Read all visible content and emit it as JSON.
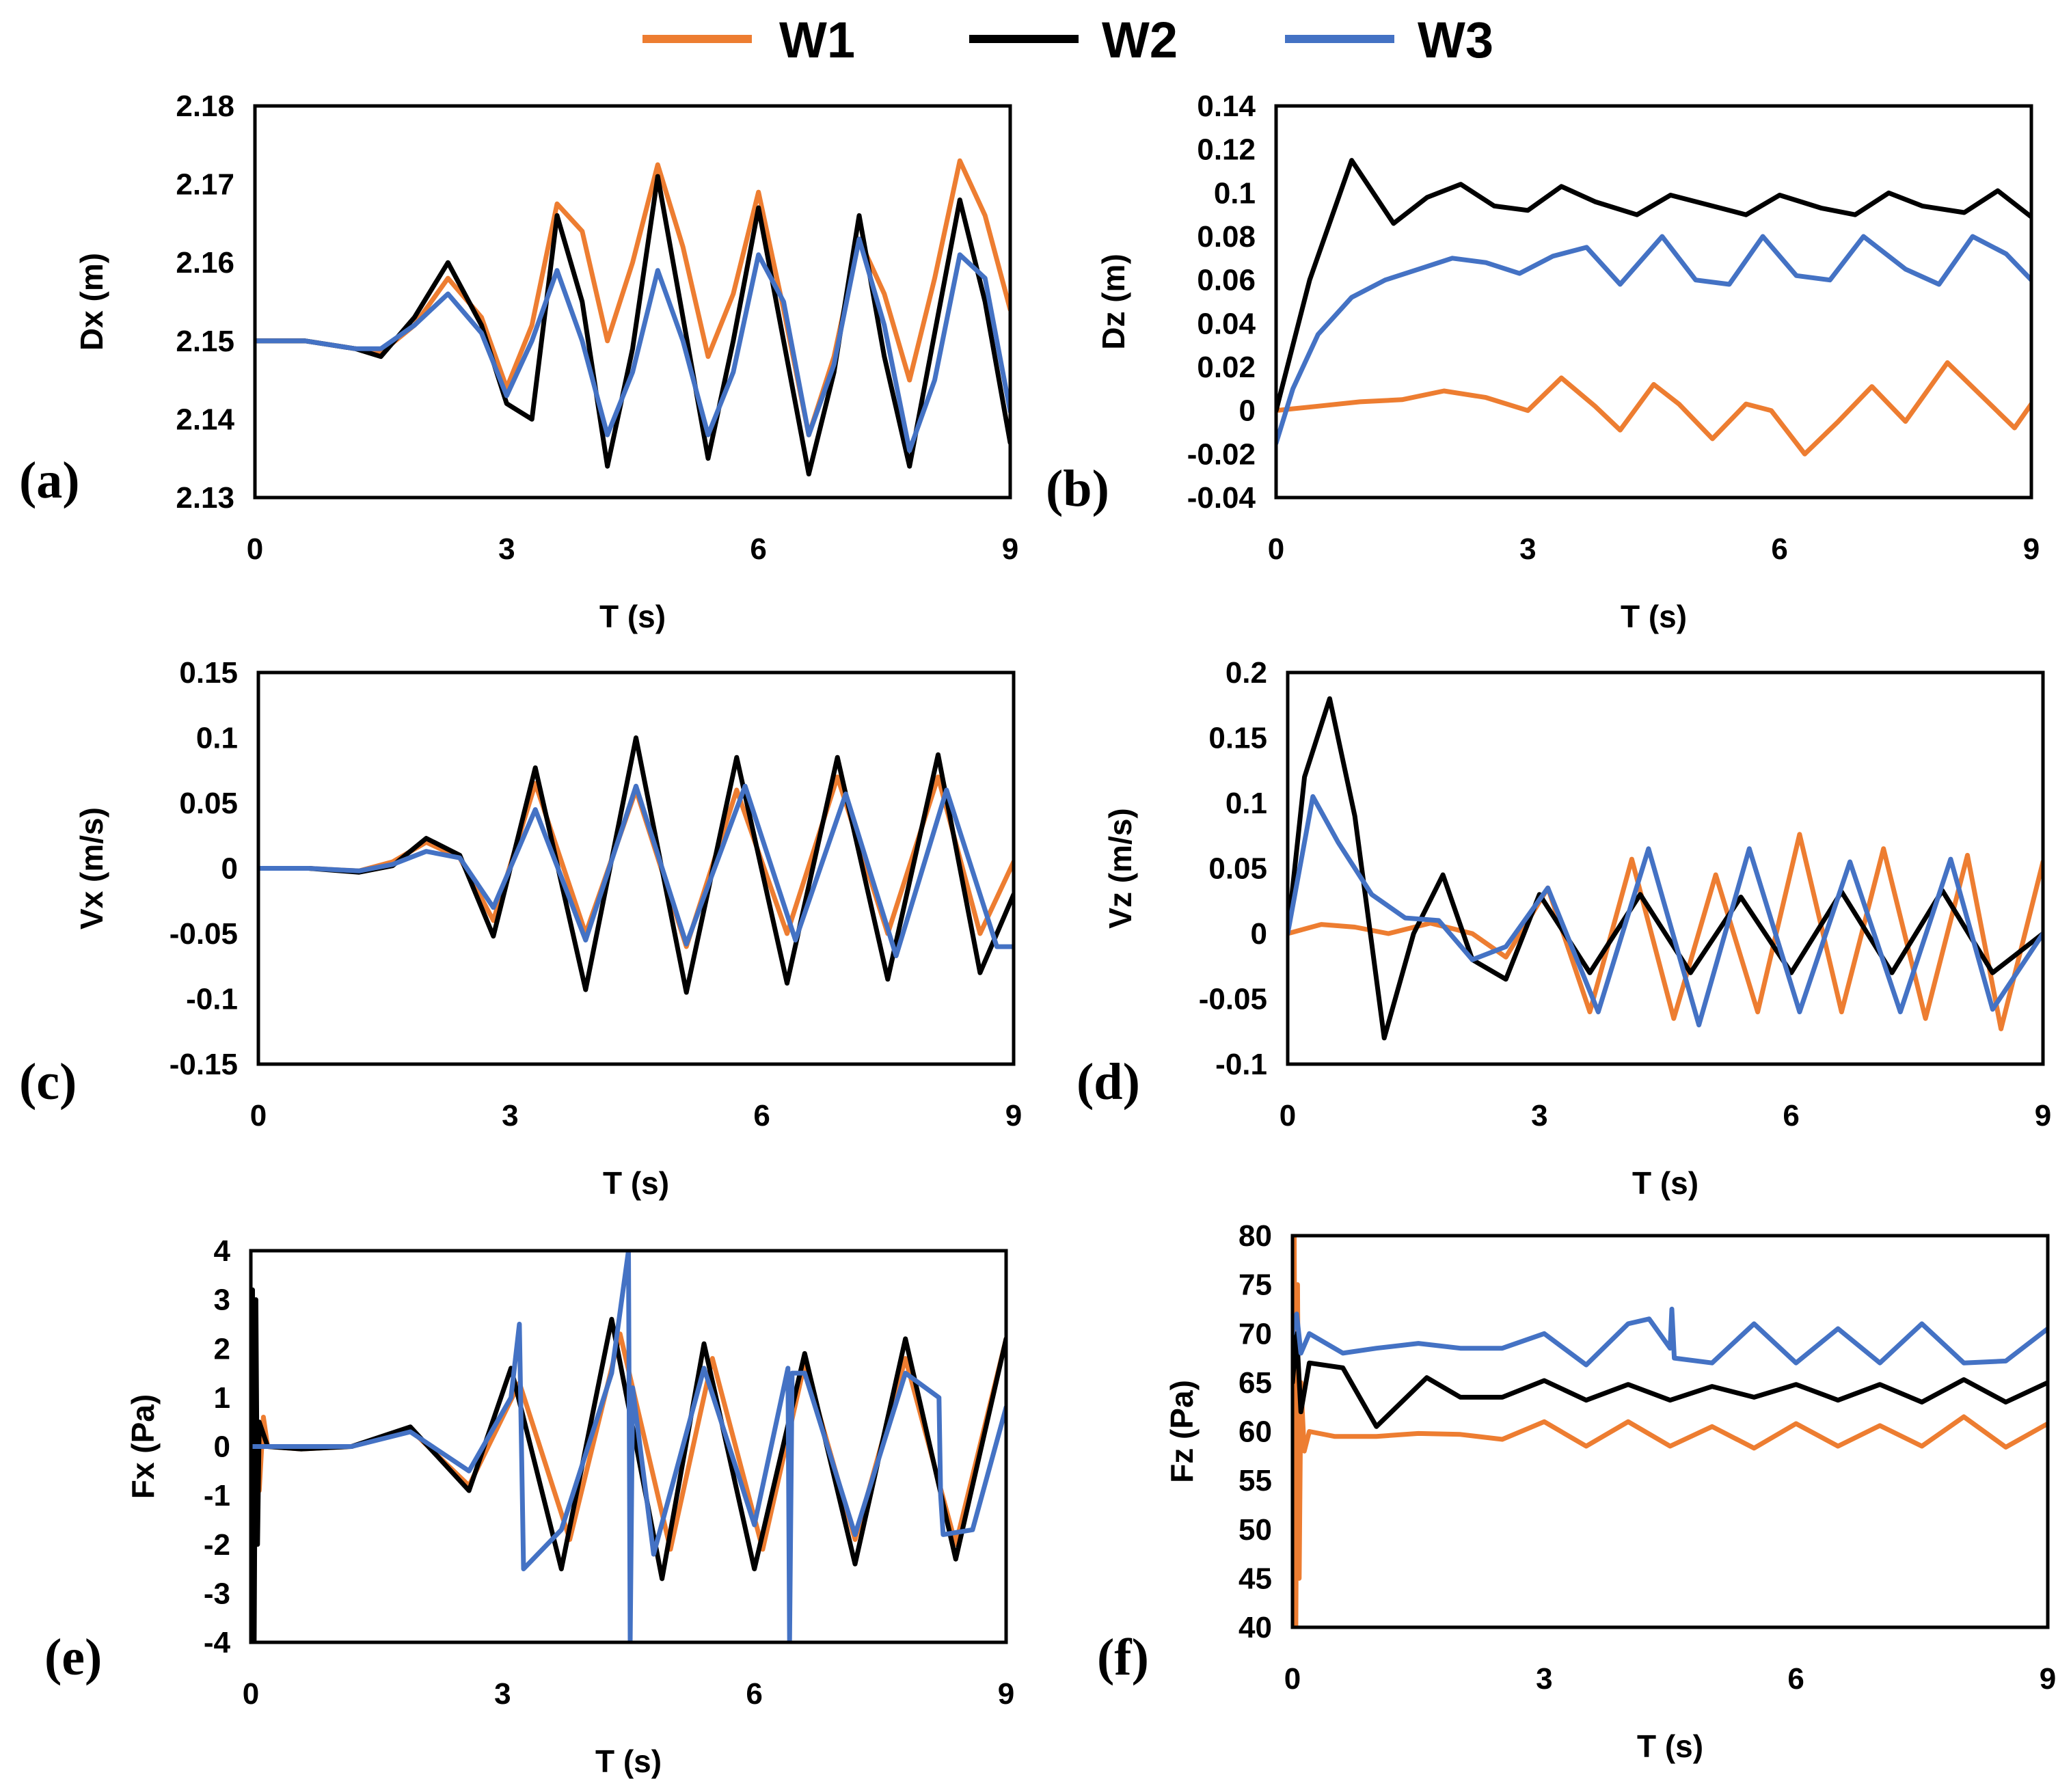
{
  "legend": [
    {
      "name": "W1",
      "color": "#ED7D31"
    },
    {
      "name": "W2",
      "color": "#000000"
    },
    {
      "name": "W3",
      "color": "#4472C4"
    }
  ],
  "chart_data": [
    {
      "id": "a",
      "panel_label": "(a)",
      "type": "line",
      "xlabel": "T (s)",
      "ylabel": "Dx (m)",
      "xlim": [
        0,
        9
      ],
      "xticks": [
        "0",
        "3",
        "6",
        "9"
      ],
      "ylim": [
        2.13,
        2.18
      ],
      "yticks": [
        "2.13",
        "2.14",
        "2.15",
        "2.16",
        "2.17",
        "2.18"
      ],
      "series": [
        {
          "name": "W1",
          "x": [
            0,
            0.6,
            1.2,
            1.5,
            1.9,
            2.3,
            2.7,
            3.0,
            3.3,
            3.6,
            3.9,
            4.2,
            4.5,
            4.8,
            5.1,
            5.4,
            5.7,
            6.0,
            6.3,
            6.6,
            6.9,
            7.2,
            7.5,
            7.8,
            8.1,
            8.4,
            8.7,
            9.0
          ],
          "y": [
            2.15,
            2.15,
            2.149,
            2.1485,
            2.152,
            2.158,
            2.153,
            2.144,
            2.152,
            2.1675,
            2.164,
            2.15,
            2.16,
            2.1725,
            2.162,
            2.148,
            2.156,
            2.169,
            2.154,
            2.138,
            2.148,
            2.163,
            2.156,
            2.145,
            2.158,
            2.173,
            2.166,
            2.154
          ]
        },
        {
          "name": "W2",
          "x": [
            0,
            0.6,
            1.2,
            1.5,
            1.9,
            2.3,
            2.7,
            3.0,
            3.3,
            3.6,
            3.9,
            4.2,
            4.5,
            4.8,
            5.1,
            5.4,
            5.7,
            6.0,
            6.3,
            6.6,
            6.9,
            7.2,
            7.5,
            7.8,
            8.1,
            8.4,
            8.7,
            9.0
          ],
          "y": [
            2.15,
            2.15,
            2.149,
            2.148,
            2.153,
            2.16,
            2.152,
            2.142,
            2.14,
            2.166,
            2.155,
            2.134,
            2.149,
            2.171,
            2.153,
            2.135,
            2.15,
            2.167,
            2.15,
            2.133,
            2.146,
            2.166,
            2.148,
            2.134,
            2.151,
            2.168,
            2.155,
            2.137
          ]
        },
        {
          "name": "W3",
          "x": [
            0,
            0.6,
            1.2,
            1.5,
            1.9,
            2.3,
            2.7,
            3.0,
            3.3,
            3.6,
            3.9,
            4.2,
            4.5,
            4.8,
            5.1,
            5.4,
            5.7,
            6.0,
            6.3,
            6.6,
            6.9,
            7.2,
            7.5,
            7.8,
            8.1,
            8.4,
            8.7,
            9.0
          ],
          "y": [
            2.15,
            2.15,
            2.149,
            2.149,
            2.152,
            2.156,
            2.151,
            2.143,
            2.15,
            2.159,
            2.15,
            2.138,
            2.146,
            2.159,
            2.15,
            2.138,
            2.146,
            2.161,
            2.155,
            2.138,
            2.147,
            2.163,
            2.152,
            2.136,
            2.145,
            2.161,
            2.158,
            2.141
          ]
        }
      ]
    },
    {
      "id": "b",
      "panel_label": "(b)",
      "type": "line",
      "xlabel": "T (s)",
      "ylabel": "Dz (m)",
      "xlim": [
        0,
        9
      ],
      "xticks": [
        "0",
        "3",
        "6",
        "9"
      ],
      "ylim": [
        -0.04,
        0.14
      ],
      "yticks": [
        "-0.04",
        "-0.02",
        "0",
        "0.02",
        "0.04",
        "0.06",
        "0.08",
        "0.1",
        "0.12",
        "0.14"
      ],
      "series": [
        {
          "name": "W1",
          "x": [
            0,
            0.5,
            1.0,
            1.5,
            2.0,
            2.5,
            3.0,
            3.4,
            3.8,
            4.1,
            4.5,
            4.8,
            5.2,
            5.6,
            5.9,
            6.3,
            6.7,
            7.1,
            7.5,
            8.0,
            8.4,
            8.8,
            9.0
          ],
          "y": [
            0.0,
            0.002,
            0.004,
            0.005,
            0.009,
            0.006,
            0.0,
            0.015,
            0.002,
            -0.009,
            0.012,
            0.003,
            -0.013,
            0.003,
            0.0,
            -0.02,
            -0.005,
            0.011,
            -0.005,
            0.022,
            0.007,
            -0.008,
            0.003
          ]
        },
        {
          "name": "W2",
          "x": [
            0,
            0.4,
            0.9,
            1.4,
            1.8,
            2.2,
            2.6,
            3.0,
            3.4,
            3.8,
            4.3,
            4.7,
            5.2,
            5.6,
            6.0,
            6.5,
            6.9,
            7.3,
            7.7,
            8.2,
            8.6,
            9.0
          ],
          "y": [
            0.0,
            0.06,
            0.115,
            0.086,
            0.098,
            0.104,
            0.094,
            0.092,
            0.103,
            0.096,
            0.09,
            0.099,
            0.094,
            0.09,
            0.099,
            0.093,
            0.09,
            0.1,
            0.094,
            0.091,
            0.101,
            0.089
          ]
        },
        {
          "name": "W3",
          "x": [
            0,
            0.2,
            0.5,
            0.9,
            1.3,
            1.7,
            2.1,
            2.5,
            2.9,
            3.3,
            3.7,
            4.1,
            4.6,
            5.0,
            5.4,
            5.8,
            6.2,
            6.6,
            7.0,
            7.5,
            7.9,
            8.3,
            8.7,
            9.0
          ],
          "y": [
            -0.015,
            0.01,
            0.035,
            0.052,
            0.06,
            0.065,
            0.07,
            0.068,
            0.063,
            0.071,
            0.075,
            0.058,
            0.08,
            0.06,
            0.058,
            0.08,
            0.062,
            0.06,
            0.08,
            0.065,
            0.058,
            0.08,
            0.072,
            0.06
          ]
        }
      ]
    },
    {
      "id": "c",
      "panel_label": "(c)",
      "type": "line",
      "xlabel": "T (s)",
      "ylabel": "Vx (m/s)",
      "xlim": [
        0,
        9
      ],
      "xticks": [
        "0",
        "3",
        "6",
        "9"
      ],
      "ylim": [
        -0.15,
        0.15
      ],
      "yticks": [
        "-0.15",
        "-0.1",
        "-0.05",
        "0",
        "0.05",
        "0.1",
        "0.15"
      ],
      "series": [
        {
          "name": "W1",
          "x": [
            0,
            0.6,
            1.2,
            1.6,
            2.0,
            2.4,
            2.8,
            3.3,
            3.9,
            4.5,
            5.1,
            5.7,
            6.3,
            6.9,
            7.5,
            8.1,
            8.6,
            9.0
          ],
          "y": [
            0,
            0,
            -0.002,
            0.005,
            0.02,
            0.008,
            -0.04,
            0.065,
            -0.05,
            0.06,
            -0.06,
            0.06,
            -0.05,
            0.07,
            -0.05,
            0.07,
            -0.05,
            0.005
          ]
        },
        {
          "name": "W2",
          "x": [
            0,
            0.6,
            1.2,
            1.6,
            2.0,
            2.4,
            2.8,
            3.3,
            3.9,
            4.5,
            5.1,
            5.7,
            6.3,
            6.9,
            7.5,
            8.1,
            8.6,
            9.0
          ],
          "y": [
            0,
            0,
            -0.003,
            0.002,
            0.023,
            0.01,
            -0.052,
            0.077,
            -0.093,
            0.1,
            -0.095,
            0.085,
            -0.088,
            0.085,
            -0.085,
            0.087,
            -0.08,
            -0.02
          ]
        },
        {
          "name": "W3",
          "x": [
            0,
            0.6,
            1.2,
            1.6,
            2.0,
            2.4,
            2.8,
            3.3,
            3.9,
            4.5,
            5.1,
            5.8,
            6.4,
            7.0,
            7.6,
            8.2,
            8.8,
            9.0
          ],
          "y": [
            0,
            0,
            -0.002,
            0.003,
            0.013,
            0.008,
            -0.03,
            0.045,
            -0.055,
            0.063,
            -0.058,
            0.063,
            -0.055,
            0.057,
            -0.067,
            0.06,
            -0.06,
            -0.06
          ]
        }
      ]
    },
    {
      "id": "d",
      "panel_label": "(d)",
      "type": "line",
      "xlabel": "T (s)",
      "ylabel": "Vz (m/s)",
      "xlim": [
        0,
        9
      ],
      "xticks": [
        "0",
        "3",
        "6",
        "9"
      ],
      "ylim": [
        -0.1,
        0.2
      ],
      "yticks": [
        "-0.1",
        "-0.05",
        "0",
        "0.05",
        "0.1",
        "0.15",
        "0.2"
      ],
      "series": [
        {
          "name": "W1",
          "x": [
            0,
            0.4,
            0.8,
            1.2,
            1.7,
            2.2,
            2.6,
            3.1,
            3.6,
            4.1,
            4.6,
            5.1,
            5.6,
            6.1,
            6.6,
            7.1,
            7.6,
            8.1,
            8.5,
            9.0
          ],
          "y": [
            0,
            0.007,
            0.005,
            0.0,
            0.008,
            0.0,
            -0.018,
            0.035,
            -0.06,
            0.057,
            -0.065,
            0.045,
            -0.06,
            0.076,
            -0.06,
            0.065,
            -0.065,
            0.06,
            -0.073,
            0.055
          ]
        },
        {
          "name": "W2",
          "x": [
            0,
            0.2,
            0.5,
            0.8,
            1.15,
            1.5,
            1.85,
            2.2,
            2.6,
            3.0,
            3.6,
            4.2,
            4.8,
            5.4,
            6.0,
            6.6,
            7.2,
            7.8,
            8.4,
            9.0
          ],
          "y": [
            0,
            0.12,
            0.18,
            0.09,
            -0.08,
            0.0,
            0.045,
            -0.02,
            -0.035,
            0.03,
            -0.03,
            0.03,
            -0.03,
            0.028,
            -0.03,
            0.032,
            -0.03,
            0.033,
            -0.03,
            0.0
          ]
        },
        {
          "name": "W3",
          "x": [
            0,
            0.3,
            0.6,
            1.0,
            1.4,
            1.8,
            2.2,
            2.6,
            3.1,
            3.7,
            4.3,
            4.9,
            5.5,
            6.1,
            6.7,
            7.3,
            7.9,
            8.4,
            9.0
          ],
          "y": [
            0,
            0.105,
            0.07,
            0.03,
            0.012,
            0.01,
            -0.02,
            -0.01,
            0.035,
            -0.06,
            0.065,
            -0.07,
            0.065,
            -0.06,
            0.055,
            -0.06,
            0.057,
            -0.058,
            0.0
          ]
        }
      ]
    },
    {
      "id": "e",
      "panel_label": "(e)",
      "type": "line",
      "xlabel": "T (s)",
      "ylabel": "Fx (Pa)",
      "xlim": [
        0,
        9
      ],
      "xticks": [
        "0",
        "3",
        "6",
        "9"
      ],
      "ylim": [
        -4,
        4
      ],
      "yticks": [
        "-4",
        "-3",
        "-2",
        "-1",
        "0",
        "1",
        "2",
        "3",
        "4"
      ],
      "series": [
        {
          "name": "W1",
          "x": [
            0,
            0.05,
            0.1,
            0.15,
            0.2,
            0.6,
            1.2,
            1.9,
            2.6,
            3.2,
            3.8,
            4.4,
            5.0,
            5.5,
            6.1,
            6.6,
            7.2,
            7.8,
            8.4,
            9.0
          ],
          "y": [
            0,
            0.9,
            -0.9,
            0.6,
            0,
            -0.05,
            0,
            0.35,
            -0.8,
            1.3,
            -1.9,
            2.3,
            -2.1,
            1.8,
            -2.1,
            1.7,
            -1.9,
            1.8,
            -2.0,
            2.2
          ]
        },
        {
          "name": "W2",
          "x": [
            0,
            0.02,
            0.04,
            0.06,
            0.08,
            0.1,
            0.2,
            0.6,
            1.2,
            1.9,
            2.6,
            3.1,
            3.7,
            4.3,
            4.9,
            5.4,
            6.0,
            6.6,
            7.2,
            7.8,
            8.4,
            9.0
          ],
          "y": [
            0,
            3.2,
            -4.0,
            3.0,
            -2.0,
            0.5,
            0,
            -0.05,
            0,
            0.4,
            -0.9,
            1.6,
            -2.5,
            2.6,
            -2.7,
            2.1,
            -2.5,
            1.9,
            -2.4,
            2.2,
            -2.3,
            2.2
          ]
        },
        {
          "name": "W3",
          "x": [
            0,
            0.2,
            0.6,
            1.2,
            1.9,
            2.6,
            3.1,
            3.2,
            3.25,
            3.7,
            4.3,
            4.5,
            4.52,
            4.55,
            4.8,
            5.4,
            6.0,
            6.4,
            6.42,
            6.45,
            6.6,
            7.2,
            7.8,
            8.2,
            8.22,
            8.25,
            8.6,
            9.0
          ],
          "y": [
            0,
            0,
            0,
            0,
            0.3,
            -0.5,
            1.0,
            2.5,
            -2.5,
            -1.7,
            1.5,
            4.0,
            -4.0,
            1.2,
            -2.2,
            1.6,
            -1.6,
            1.6,
            -4.0,
            1.5,
            1.5,
            -1.8,
            1.5,
            1.0,
            -1.0,
            -1.8,
            -1.7,
            0.8
          ]
        }
      ]
    },
    {
      "id": "f",
      "panel_label": "(f)",
      "type": "line",
      "xlabel": "T (s)",
      "ylabel": "Fz (Pa)",
      "xlim": [
        0,
        9
      ],
      "xticks": [
        "0",
        "3",
        "6",
        "9"
      ],
      "ylim": [
        40,
        80
      ],
      "yticks": [
        "40",
        "45",
        "50",
        "55",
        "60",
        "65",
        "70",
        "75",
        "80"
      ],
      "series": [
        {
          "name": "W1",
          "x": [
            0,
            0.02,
            0.04,
            0.06,
            0.08,
            0.1,
            0.14,
            0.2,
            0.5,
            1.0,
            1.5,
            2.0,
            2.5,
            3.0,
            3.5,
            4.0,
            4.5,
            5.0,
            5.5,
            6.0,
            6.5,
            7.0,
            7.5,
            8.0,
            8.5,
            9.0
          ],
          "y": [
            60,
            80,
            40,
            75,
            45,
            65,
            58,
            60,
            59.5,
            59.5,
            59.8,
            59.7,
            59.2,
            61,
            58.5,
            61,
            58.5,
            60.5,
            58.3,
            60.8,
            58.5,
            60.6,
            58.5,
            61.5,
            58.4,
            60.8
          ]
        },
        {
          "name": "W2",
          "x": [
            0,
            0.05,
            0.1,
            0.2,
            0.6,
            1.0,
            1.6,
            2.0,
            2.5,
            3.0,
            3.5,
            4.0,
            4.5,
            5.0,
            5.5,
            6.0,
            6.5,
            7.0,
            7.5,
            8.0,
            8.5,
            9.0
          ],
          "y": [
            65,
            70,
            62,
            67,
            66.5,
            60.5,
            65.5,
            63.5,
            63.5,
            65.2,
            63.2,
            64.8,
            63.2,
            64.6,
            63.5,
            64.8,
            63.2,
            64.8,
            63,
            65.3,
            63,
            65
          ]
        },
        {
          "name": "W3",
          "x": [
            0,
            0.05,
            0.1,
            0.2,
            0.6,
            1.0,
            1.5,
            2.0,
            2.5,
            3.0,
            3.5,
            4.0,
            4.25,
            4.5,
            4.52,
            4.55,
            5.0,
            5.5,
            6.0,
            6.5,
            7.0,
            7.5,
            8.0,
            8.5,
            9.0
          ],
          "y": [
            70,
            72,
            68,
            70,
            68,
            68.5,
            69,
            68.5,
            68.5,
            70,
            66.8,
            71,
            71.5,
            68.5,
            72.5,
            67.5,
            67,
            71,
            67,
            70.5,
            67,
            71,
            67,
            67.2,
            70.5
          ]
        }
      ]
    }
  ]
}
